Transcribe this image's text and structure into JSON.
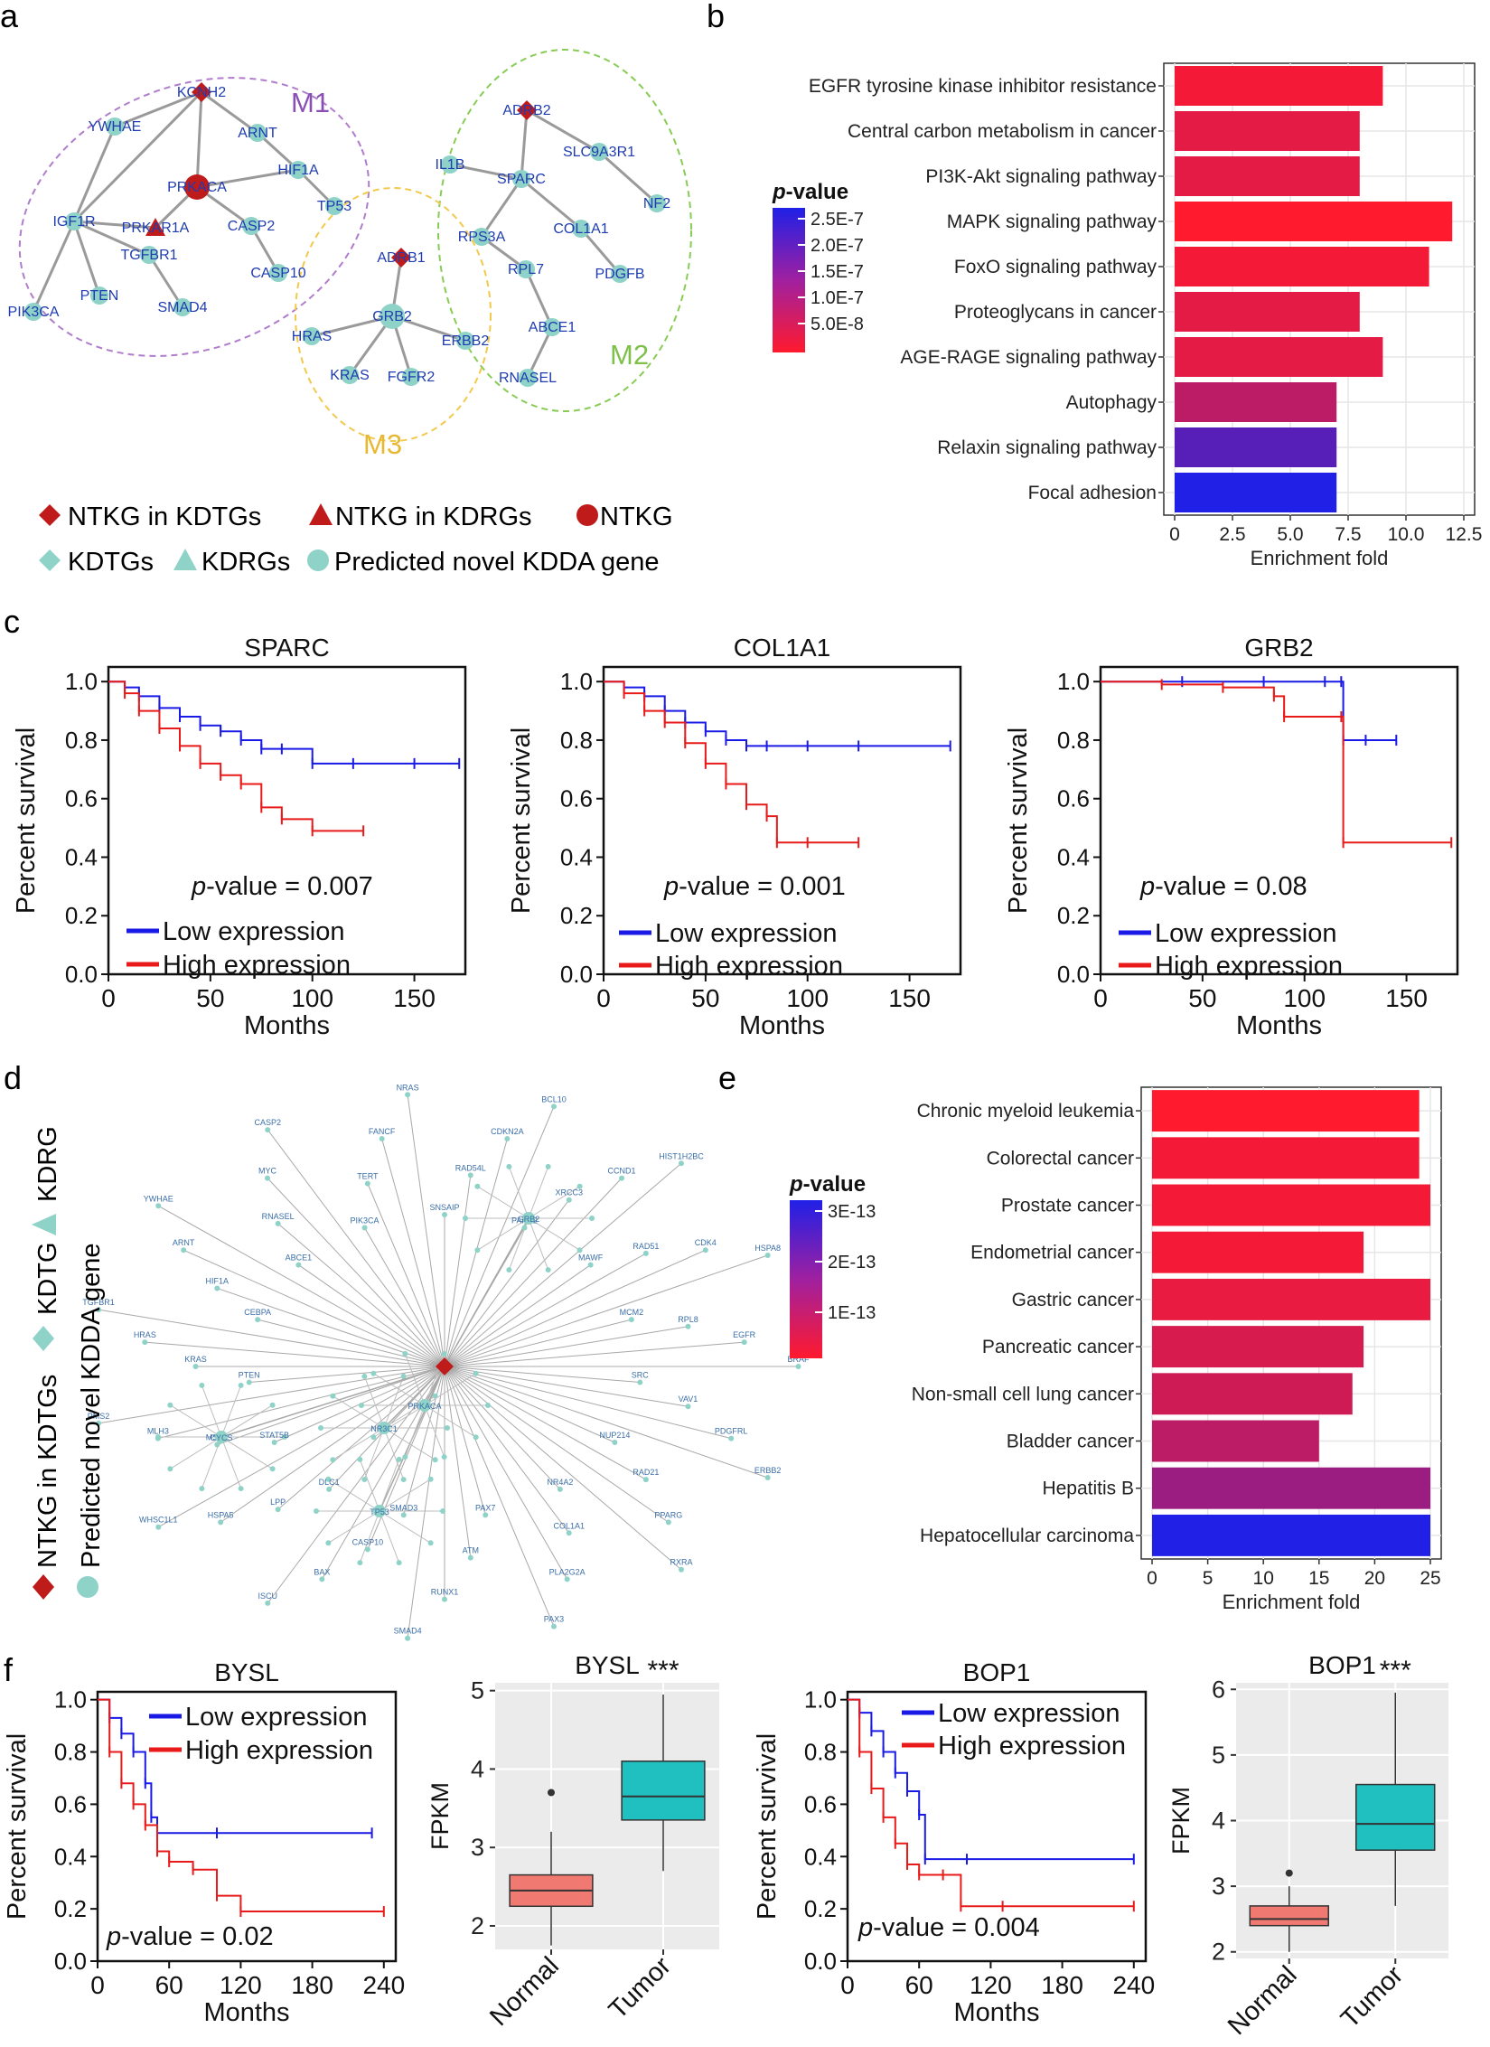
{
  "panel_letters": [
    "a",
    "b",
    "c",
    "d",
    "e",
    "f"
  ],
  "colors": {
    "grad_top": "#2020e6",
    "grad_bottom": "#ff1a2e",
    "low": "#1a1ae6",
    "high": "#e81a1a",
    "node": "#8fd3c8",
    "node_label": "#1f3cb0",
    "ntkg": "#bf1b1b",
    "m1": "#b07ccc",
    "m2": "#88cc55",
    "m3": "#f2c94c",
    "box_normal": "#f07a72",
    "box_tumor": "#20bfc0",
    "box_bg": "#ebebeb"
  },
  "panel_a": {
    "modules": [
      "M1",
      "M2",
      "M3"
    ],
    "nodes": [
      "KCNH2",
      "ARNT",
      "YWHAE",
      "PRKACA",
      "HIF1A",
      "IGF1R",
      "PRKAR1A",
      "CASP2",
      "TP53",
      "TGFBR1",
      "CASP10",
      "PIK3CA",
      "PTEN",
      "SMAD4",
      "ADRB2",
      "IL1B",
      "SLC9A3R1",
      "SPARC",
      "NF2",
      "RPS3A",
      "COL1A1",
      "RPL7",
      "PDGFB",
      "ABCE1",
      "RNASEL",
      "ADRB1",
      "GRB2",
      "HRAS",
      "ERBB2",
      "KRAS",
      "FGFR2"
    ],
    "legend": [
      "NTKG in KDTGs",
      "NTKG in KDRGs",
      "NTKG",
      "KDTGs",
      "KDRGs",
      "Predicted novel KDDA gene"
    ]
  },
  "chart_data": [
    {
      "panel": "b",
      "type": "bar",
      "orientation": "horizontal",
      "categories": [
        "EGFR tyrosine kinase inhibitor resistance",
        "Central carbon metabolism in cancer",
        "PI3K-Akt signaling pathway",
        "MAPK signaling pathway",
        "FoxO signaling pathway",
        "Proteoglycans in cancer",
        "AGE-RAGE signaling pathway",
        "Autophagy",
        "Relaxin signaling pathway",
        "Focal adhesion"
      ],
      "values": [
        9.0,
        8.0,
        8.0,
        12.0,
        11.0,
        8.0,
        9.0,
        7.0,
        7.0,
        7.0
      ],
      "pvalue_color": [
        0.05,
        0.12,
        0.12,
        0.0,
        0.05,
        0.12,
        0.12,
        0.3,
        0.75,
        1.0
      ],
      "xlabel": "Enrichment fold",
      "xlim": [
        0,
        12.5
      ],
      "xticks": [
        "0",
        "2.5",
        "5.0",
        "7.5",
        "10.0",
        "12.5"
      ],
      "legend_title": "p-value",
      "legend_ticks": [
        "2.5E-7",
        "2.0E-7",
        "1.5E-7",
        "1.0E-7",
        "5.0E-8"
      ]
    },
    {
      "panel": "c",
      "type": "line",
      "title": "SPARC",
      "ylabel": "Percent  survival",
      "xlabel": "Months",
      "xlim": [
        0,
        175
      ],
      "ylim": [
        0,
        1.05
      ],
      "xticks": [
        "0",
        "50",
        "100",
        "150"
      ],
      "yticks": [
        "0.0",
        "0.2",
        "0.4",
        "0.6",
        "0.8",
        "1.0"
      ],
      "pvalue": "= 0.007",
      "series": [
        {
          "name": "Low expression",
          "x": [
            0,
            8,
            15,
            25,
            35,
            45,
            55,
            65,
            75,
            85,
            100,
            120,
            150,
            172
          ],
          "y": [
            1.0,
            0.98,
            0.95,
            0.91,
            0.88,
            0.85,
            0.83,
            0.8,
            0.77,
            0.77,
            0.72,
            0.72,
            0.72,
            0.72
          ]
        },
        {
          "name": "High expression",
          "x": [
            0,
            8,
            15,
            25,
            35,
            45,
            55,
            65,
            75,
            85,
            100,
            125
          ],
          "y": [
            1.0,
            0.96,
            0.9,
            0.84,
            0.78,
            0.72,
            0.68,
            0.65,
            0.57,
            0.53,
            0.49,
            0.49
          ]
        }
      ]
    },
    {
      "panel": "c",
      "type": "line",
      "title": "COL1A1",
      "ylabel": "Percent  survival",
      "xlabel": "Months",
      "xlim": [
        0,
        175
      ],
      "ylim": [
        0,
        1.05
      ],
      "xticks": [
        "0",
        "50",
        "100",
        "150"
      ],
      "yticks": [
        "0.0",
        "0.2",
        "0.4",
        "0.6",
        "0.8",
        "1.0"
      ],
      "pvalue": "= 0.001",
      "series": [
        {
          "name": "Low expression",
          "x": [
            0,
            10,
            20,
            30,
            40,
            50,
            60,
            70,
            80,
            100,
            125,
            170
          ],
          "y": [
            1.0,
            0.98,
            0.95,
            0.9,
            0.86,
            0.83,
            0.8,
            0.78,
            0.78,
            0.78,
            0.78,
            0.78
          ]
        },
        {
          "name": "High expression",
          "x": [
            0,
            10,
            20,
            30,
            40,
            50,
            60,
            70,
            80,
            85,
            100,
            125
          ],
          "y": [
            1.0,
            0.96,
            0.9,
            0.86,
            0.79,
            0.72,
            0.65,
            0.58,
            0.54,
            0.45,
            0.45,
            0.45
          ]
        }
      ]
    },
    {
      "panel": "c",
      "type": "line",
      "title": "GRB2",
      "ylabel": "Percent  survival",
      "xlabel": "Months",
      "xlim": [
        0,
        175
      ],
      "ylim": [
        0,
        1.05
      ],
      "xticks": [
        "0",
        "50",
        "100",
        "150"
      ],
      "yticks": [
        "0.0",
        "0.2",
        "0.4",
        "0.6",
        "0.8",
        "1.0"
      ],
      "pvalue": "= 0.08",
      "series": [
        {
          "name": "Low expression",
          "x": [
            0,
            40,
            80,
            110,
            118,
            119,
            130,
            145
          ],
          "y": [
            1.0,
            1.0,
            1.0,
            1.0,
            1.0,
            0.8,
            0.8,
            0.8
          ]
        },
        {
          "name": "High expression",
          "x": [
            0,
            30,
            60,
            85,
            90,
            118,
            119,
            172
          ],
          "y": [
            1.0,
            0.99,
            0.98,
            0.95,
            0.88,
            0.88,
            0.45,
            0.45
          ]
        }
      ]
    },
    {
      "panel": "e",
      "type": "bar",
      "orientation": "horizontal",
      "categories": [
        "Chronic myeloid leukemia",
        "Colorectal cancer",
        "Prostate cancer",
        "Endometrial cancer",
        "Gastric cancer",
        "Pancreatic cancer",
        "Non-small cell lung cancer",
        "Bladder cancer",
        "Hepatitis B",
        "Hepatocellular carcinoma"
      ],
      "values": [
        24.0,
        24.0,
        25.0,
        19.0,
        25.0,
        19.0,
        18.0,
        15.0,
        25.0,
        25.0
      ],
      "pvalue_color": [
        0.0,
        0.05,
        0.05,
        0.05,
        0.1,
        0.18,
        0.22,
        0.3,
        0.45,
        1.0
      ],
      "xlabel": "Enrichment fold",
      "xlim": [
        0,
        25
      ],
      "xticks": [
        "0",
        "5",
        "10",
        "15",
        "20",
        "25"
      ],
      "legend_title": "p-value",
      "legend_ticks": [
        "3E-13",
        "2E-13",
        "1E-13"
      ]
    },
    {
      "panel": "f",
      "type": "line",
      "title": "BYSL",
      "ylabel": "Percent  survival",
      "xlabel": "Months",
      "xlim": [
        0,
        250
      ],
      "ylim": [
        0,
        1.03
      ],
      "xticks": [
        "0",
        "60",
        "120",
        "180",
        "240"
      ],
      "yticks": [
        "0.0",
        "0.2",
        "0.4",
        "0.6",
        "0.8",
        "1.0"
      ],
      "pvalue": "= 0.02",
      "series": [
        {
          "name": "Low expression",
          "x": [
            0,
            10,
            20,
            30,
            40,
            45,
            50,
            100,
            230
          ],
          "y": [
            1.0,
            0.93,
            0.87,
            0.8,
            0.68,
            0.55,
            0.49,
            0.49,
            0.49
          ]
        },
        {
          "name": "High expression",
          "x": [
            0,
            10,
            20,
            30,
            40,
            50,
            60,
            80,
            100,
            120,
            240
          ],
          "y": [
            1.0,
            0.8,
            0.68,
            0.6,
            0.52,
            0.42,
            0.38,
            0.35,
            0.25,
            0.19,
            0.19
          ]
        }
      ]
    },
    {
      "panel": "f",
      "type": "box",
      "title": "BYSL",
      "ylabel": "FPKM",
      "categories": [
        "Normal",
        "Tumor"
      ],
      "ylim": [
        1.7,
        5.1
      ],
      "yticks": [
        "2",
        "3",
        "4",
        "5"
      ],
      "significance": "***",
      "boxes": [
        {
          "whisker_low": 1.75,
          "q1": 2.25,
          "median": 2.45,
          "q3": 2.65,
          "whisker_high": 3.2,
          "outliers": [
            3.7
          ]
        },
        {
          "whisker_low": 2.7,
          "q1": 3.35,
          "median": 3.65,
          "q3": 4.1,
          "whisker_high": 4.95,
          "outliers": []
        }
      ]
    },
    {
      "panel": "f",
      "type": "line",
      "title": "BOP1",
      "ylabel": "Percent  survival",
      "xlabel": "Months",
      "xlim": [
        0,
        250
      ],
      "ylim": [
        0,
        1.03
      ],
      "xticks": [
        "0",
        "60",
        "120",
        "180",
        "240"
      ],
      "yticks": [
        "0.0",
        "0.2",
        "0.4",
        "0.6",
        "0.8",
        "1.0"
      ],
      "pvalue": "= 0.004",
      "series": [
        {
          "name": "Low expression",
          "x": [
            0,
            10,
            20,
            30,
            40,
            50,
            60,
            65,
            100,
            240
          ],
          "y": [
            1.0,
            0.95,
            0.88,
            0.8,
            0.72,
            0.65,
            0.56,
            0.39,
            0.39,
            0.39
          ]
        },
        {
          "name": "High expression",
          "x": [
            0,
            10,
            20,
            30,
            40,
            50,
            60,
            80,
            95,
            130,
            240
          ],
          "y": [
            1.0,
            0.8,
            0.66,
            0.55,
            0.45,
            0.37,
            0.33,
            0.33,
            0.21,
            0.21,
            0.21
          ]
        }
      ]
    },
    {
      "panel": "f",
      "type": "box",
      "title": "BOP1",
      "ylabel": "FPKM",
      "categories": [
        "Normal",
        "Tumor"
      ],
      "ylim": [
        1.9,
        6.1
      ],
      "yticks": [
        "2",
        "3",
        "4",
        "5",
        "6"
      ],
      "significance": "***",
      "boxes": [
        {
          "whisker_low": 2.0,
          "q1": 2.4,
          "median": 2.5,
          "q3": 2.7,
          "whisker_high": 3.0,
          "outliers": [
            3.2
          ]
        },
        {
          "whisker_low": 2.7,
          "q1": 3.55,
          "median": 3.95,
          "q3": 4.55,
          "whisker_high": 5.95,
          "outliers": []
        }
      ]
    }
  ],
  "panel_d": {
    "legend": [
      "NTKG in KDTGs",
      "KDTG",
      "KDRG",
      "Predicted novel KDDA gene"
    ],
    "hub_nodes": [
      "GRB2",
      "NR3C1",
      "TP53",
      "PRKACA",
      "CYCS"
    ],
    "peripheral_labels": [
      "SNSAIP",
      "RAD54L",
      "CDKN2A",
      "BCL10",
      "PARK2",
      "XRCC3",
      "CCND1",
      "HIST1H2BC",
      "MAWF",
      "RAD51",
      "CDK4",
      "HSPA8",
      "MCM2",
      "RPL8",
      "EGFR",
      "BRAF",
      "SRC",
      "VAV1",
      "PDGFRL",
      "ERBB2",
      "NUP214",
      "RAD21",
      "PPARG",
      "RXRA",
      "NR4A2",
      "COL1A1",
      "PLA2G2A",
      "PAX3",
      "PAX7",
      "ATM",
      "RUNX1",
      "SMAD4",
      "SMAD3",
      "CASP10",
      "BAX",
      "ISCU",
      "DLC1",
      "LPP",
      "HSPA5",
      "WHSC1L1",
      "STAT5B",
      "MSH2",
      "MLH3",
      "PMS2",
      "PTEN",
      "KRAS",
      "HRAS",
      "TGFBR1",
      "CEBPA",
      "HIF1A",
      "ARNT",
      "YWHAE",
      "ABCE1",
      "RNASEL",
      "MYC",
      "CASP2",
      "PIK3CA",
      "TERT",
      "FANCF",
      "NRAS"
    ]
  }
}
